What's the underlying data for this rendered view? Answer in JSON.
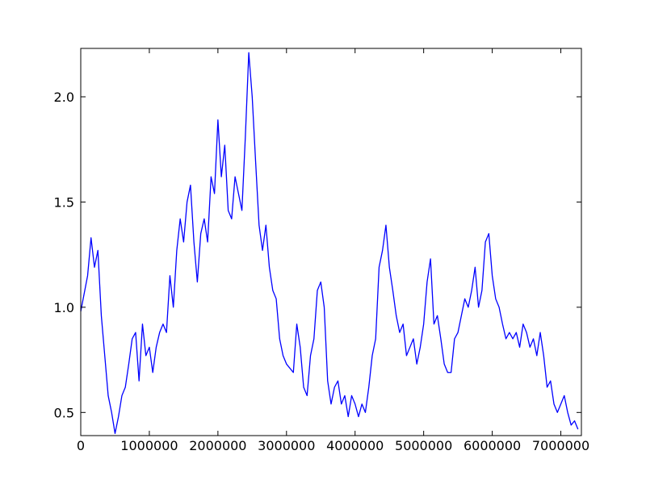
{
  "chart_data": {
    "type": "line",
    "x": [
      0,
      100000,
      150000,
      200000,
      250000,
      300000,
      350000,
      400000,
      450000,
      500000,
      550000,
      600000,
      650000,
      700000,
      750000,
      800000,
      850000,
      900000,
      950000,
      1000000,
      1050000,
      1100000,
      1150000,
      1200000,
      1250000,
      1300000,
      1350000,
      1400000,
      1450000,
      1500000,
      1550000,
      1600000,
      1650000,
      1700000,
      1750000,
      1800000,
      1850000,
      1900000,
      1950000,
      2000000,
      2050000,
      2100000,
      2150000,
      2200000,
      2250000,
      2300000,
      2350000,
      2400000,
      2450000,
      2500000,
      2550000,
      2600000,
      2650000,
      2700000,
      2750000,
      2800000,
      2850000,
      2900000,
      2950000,
      3000000,
      3100000,
      3150000,
      3200000,
      3250000,
      3300000,
      3350000,
      3400000,
      3450000,
      3500000,
      3550000,
      3600000,
      3650000,
      3700000,
      3750000,
      3800000,
      3850000,
      3900000,
      3950000,
      4000000,
      4050000,
      4100000,
      4150000,
      4200000,
      4250000,
      4300000,
      4350000,
      4400000,
      4450000,
      4500000,
      4550000,
      4600000,
      4650000,
      4700000,
      4750000,
      4800000,
      4850000,
      4900000,
      4950000,
      5000000,
      5050000,
      5100000,
      5150000,
      5200000,
      5250000,
      5300000,
      5350000,
      5400000,
      5450000,
      5500000,
      5550000,
      5600000,
      5650000,
      5700000,
      5750000,
      5800000,
      5850000,
      5900000,
      5950000,
      6000000,
      6050000,
      6100000,
      6150000,
      6200000,
      6250000,
      6300000,
      6350000,
      6400000,
      6450000,
      6500000,
      6550000,
      6600000,
      6650000,
      6700000,
      6750000,
      6800000,
      6850000,
      6900000,
      6950000,
      7000000,
      7050000,
      7100000,
      7150000,
      7200000,
      7250000
    ],
    "series": [
      {
        "color": "#0000ff",
        "values": [
          0.98,
          1.15,
          1.33,
          1.19,
          1.27,
          0.96,
          0.77,
          0.58,
          0.5,
          0.4,
          0.48,
          0.58,
          0.62,
          0.73,
          0.85,
          0.88,
          0.65,
          0.92,
          0.77,
          0.81,
          0.69,
          0.81,
          0.88,
          0.92,
          0.88,
          1.15,
          1.0,
          1.27,
          1.42,
          1.31,
          1.5,
          1.58,
          1.31,
          1.12,
          1.35,
          1.42,
          1.31,
          1.62,
          1.54,
          1.89,
          1.62,
          1.77,
          1.46,
          1.42,
          1.62,
          1.54,
          1.46,
          1.81,
          2.21,
          2.0,
          1.69,
          1.39,
          1.27,
          1.39,
          1.19,
          1.08,
          1.04,
          0.85,
          0.77,
          0.73,
          0.69,
          0.92,
          0.81,
          0.62,
          0.58,
          0.77,
          0.85,
          1.08,
          1.12,
          1.0,
          0.65,
          0.54,
          0.62,
          0.65,
          0.54,
          0.58,
          0.48,
          0.58,
          0.54,
          0.48,
          0.54,
          0.5,
          0.62,
          0.77,
          0.85,
          1.19,
          1.27,
          1.39,
          1.19,
          1.08,
          0.96,
          0.88,
          0.92,
          0.77,
          0.81,
          0.85,
          0.73,
          0.81,
          0.92,
          1.12,
          1.23,
          0.92,
          0.96,
          0.85,
          0.73,
          0.69,
          0.69,
          0.85,
          0.88,
          0.96,
          1.04,
          1.0,
          1.08,
          1.19,
          1.0,
          1.08,
          1.31,
          1.35,
          1.15,
          1.04,
          1.0,
          0.92,
          0.85,
          0.88,
          0.85,
          0.88,
          0.81,
          0.92,
          0.88,
          0.81,
          0.85,
          0.77,
          0.88,
          0.77,
          0.62,
          0.65,
          0.54,
          0.5,
          0.54,
          0.58,
          0.5,
          0.44,
          0.46,
          0.42
        ]
      }
    ],
    "xlim": [
      0,
      7300000
    ],
    "ylim": [
      0.39,
      2.23
    ],
    "xticks": [
      0,
      1000000,
      2000000,
      3000000,
      4000000,
      5000000,
      6000000,
      7000000
    ],
    "yticks": [
      0.5,
      {
        "value": 1,
        "label": "1.0"
      },
      1.5,
      {
        "value": 2,
        "label": "2.0"
      }
    ]
  }
}
